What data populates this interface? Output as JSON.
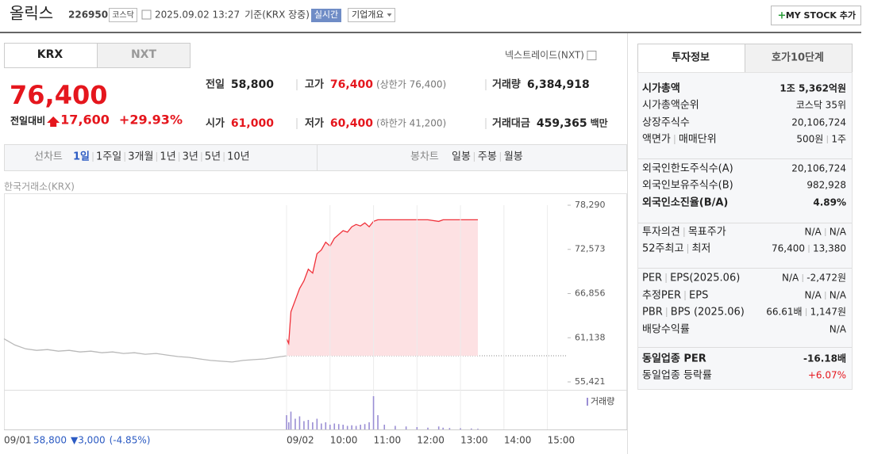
{
  "header": {
    "name": "올릭스",
    "code": "226950",
    "market": "코스닥",
    "timestamp": "2025.09.02 13:27",
    "basis": "기준(KRX 장중)",
    "realtime": "실시간",
    "company": "기업개요",
    "mystock": "MY STOCK 추가"
  },
  "exchange_tabs": [
    "KRX",
    "NXT"
  ],
  "nxt_link": "넥스트레이드(NXT)",
  "price": {
    "current": "76,400",
    "change_label": "전일대비",
    "change": "17,600",
    "change_rate": "+29.93%"
  },
  "summary": [
    {
      "label": "전일",
      "value": "58,800"
    },
    {
      "label": "고가",
      "value": "76,400",
      "note": "(상한가 76,400)"
    },
    {
      "label": "거래량",
      "value": "6,384,918"
    },
    {
      "label": "시가",
      "value": "61,000"
    },
    {
      "label": "저가",
      "value": "60,400",
      "note": "(하한가 41,200)"
    },
    {
      "label": "거래대금",
      "value": "459,365",
      "unit": "백만"
    }
  ],
  "period_tabs": {
    "label": "선차트",
    "items": [
      "1일",
      "1주일",
      "3개월",
      "1년",
      "3년",
      "5년",
      "10년"
    ]
  },
  "candle_tabs": {
    "label": "봉차트",
    "items": [
      "일봉",
      "주봉",
      "월봉"
    ]
  },
  "chart_source": "한국거래소(KRX)",
  "chart_data": [
    {
      "type": "line",
      "xlim": [
        0,
        13
      ],
      "ylim": [
        55421,
        78290
      ],
      "yticks": [
        {
          "value": 78290,
          "label": "78,290"
        },
        {
          "value": 72573,
          "label": "72,573"
        },
        {
          "value": 66856,
          "label": "66,856"
        },
        {
          "value": 61138,
          "label": "61,138"
        },
        {
          "value": 55421,
          "label": "55,421"
        }
      ],
      "base_line": 58800,
      "series": [
        {
          "color": "#b9b9b9",
          "x": [
            0,
            0.25,
            0.5,
            0.75,
            1,
            1.25,
            1.5,
            1.75,
            2,
            2.25,
            2.5,
            2.75,
            3,
            3.25,
            3.5,
            3.75,
            4,
            4.25,
            4.5,
            4.75,
            5,
            5.25,
            5.5,
            5.75,
            6,
            6.25,
            6.5
          ],
          "values": [
            61000,
            60200,
            59700,
            59500,
            59600,
            59400,
            59500,
            59300,
            59400,
            59200,
            59300,
            59100,
            59200,
            59000,
            59100,
            58900,
            58700,
            58600,
            58400,
            58200,
            58100,
            58000,
            58200,
            58300,
            58400,
            58600,
            58800
          ]
        },
        {
          "color": "#f0313a",
          "fill": "#fde1e3",
          "x": [
            6.5,
            6.55,
            6.6,
            6.7,
            6.8,
            6.9,
            7.0,
            7.1,
            7.2,
            7.3,
            7.4,
            7.5,
            7.6,
            7.7,
            7.8,
            7.9,
            8.0,
            8.1,
            8.2,
            8.3,
            8.4,
            8.5,
            8.6,
            8.75,
            9.0,
            9.25,
            9.5,
            9.75,
            10.0,
            10.1,
            10.25,
            10.5,
            10.75,
            10.9
          ],
          "values": [
            61000,
            60400,
            64500,
            66000,
            67500,
            68500,
            70000,
            69500,
            72000,
            72500,
            73500,
            73000,
            74000,
            74500,
            75000,
            74800,
            75500,
            75800,
            75600,
            76000,
            75500,
            76200,
            76400,
            76400,
            76400,
            76400,
            76400,
            76400,
            76200,
            76400,
            76400,
            76400,
            76400,
            76400
          ]
        }
      ]
    },
    {
      "type": "bar",
      "xlim": [
        0,
        13
      ],
      "ylim": [
        0,
        300000
      ],
      "xticks": [
        {
          "value": 0,
          "label": "09/01"
        },
        {
          "value": 6.5,
          "label": "09/02"
        },
        {
          "value": 7.5,
          "label": "10:00"
        },
        {
          "value": 8.5,
          "label": "11:00"
        },
        {
          "value": 9.5,
          "label": "12:00"
        },
        {
          "value": 10.5,
          "label": "13:00"
        },
        {
          "value": 11.5,
          "label": "14:00"
        },
        {
          "value": 12.5,
          "label": "15:00"
        }
      ],
      "grid": true,
      "series": [
        {
          "name": "거래량",
          "color": "#9a8ed4",
          "x": [
            6.5,
            6.55,
            6.6,
            6.7,
            6.8,
            6.9,
            7.0,
            7.1,
            7.2,
            7.3,
            7.4,
            7.5,
            7.6,
            7.7,
            7.8,
            7.9,
            8.0,
            8.1,
            8.2,
            8.3,
            8.4,
            8.5,
            8.6,
            8.75,
            9.0,
            9.25,
            9.5,
            9.75,
            10.0,
            10.1,
            10.25,
            10.5,
            10.75,
            10.9
          ],
          "values": [
            120000,
            60000,
            150000,
            90000,
            110000,
            70000,
            80000,
            60000,
            90000,
            50000,
            60000,
            40000,
            50000,
            45000,
            40000,
            30000,
            35000,
            30000,
            40000,
            45000,
            60000,
            280000,
            120000,
            40000,
            30000,
            25000,
            20000,
            15000,
            25000,
            15000,
            12000,
            10000,
            8000,
            6000
          ]
        }
      ]
    }
  ],
  "prev_day": {
    "close": "58,800",
    "change": "▼3,000",
    "rate": "(-4.85%)"
  },
  "info_tabs": [
    "투자정보",
    "호가10단계"
  ],
  "info_groups": [
    [
      {
        "label": "시가총액",
        "value": "1조 5,362억원"
      },
      {
        "label": "시가총액순위",
        "value": "코스닥 35위"
      },
      {
        "label": "상장주식수",
        "value": "20,106,724"
      },
      {
        "label": "액면가",
        "label2": "매매단위",
        "value": "500원",
        "value2": "1주"
      }
    ],
    [
      {
        "label": "외국인한도주식수(A)",
        "value": "20,106,724"
      },
      {
        "label": "외국인보유주식수(B)",
        "value": "982,928"
      },
      {
        "label": "외국인소진율(B/A)",
        "value": "4.89%"
      }
    ],
    [
      {
        "label": "투자의견",
        "label2": "목표주가",
        "value": "N/A",
        "value2": "N/A"
      },
      {
        "label": "52주최고",
        "label2": "최저",
        "value": "76,400",
        "value2": "13,380"
      }
    ],
    [
      {
        "label": "PER",
        "label2": "EPS(2025.06)",
        "value": "N/A",
        "value2": "-2,472원"
      },
      {
        "label": "추정PER",
        "label2": "EPS",
        "value": "N/A",
        "value2": "N/A"
      },
      {
        "label": "PBR",
        "label2": "BPS (2025.06)",
        "value": "66.61배",
        "value2": "1,147원"
      },
      {
        "label": "배당수익률",
        "value": "N/A"
      }
    ],
    [
      {
        "label": "동일업종 PER",
        "value": "-16.18배"
      },
      {
        "label": "동일업종 등락률",
        "value": "+6.07%"
      }
    ]
  ]
}
